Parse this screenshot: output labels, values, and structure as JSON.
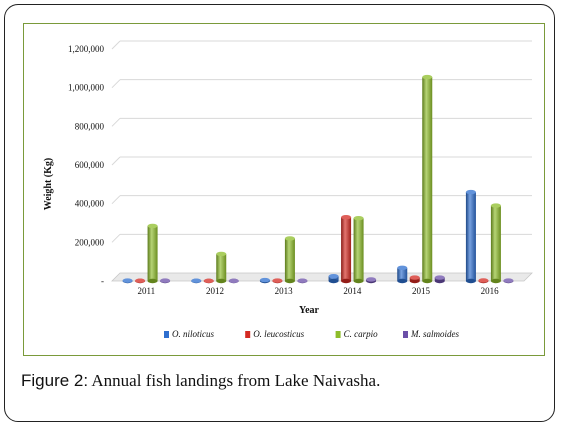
{
  "caption": {
    "label": "Figure 2:",
    "text": "Annual fish landings from Lake Naivasha."
  },
  "chart_data": {
    "type": "bar",
    "style": "3d-cylinder",
    "categories": [
      "2011",
      "2012",
      "2013",
      "2014",
      "2015",
      "2016"
    ],
    "xlabel": "Year",
    "ylabel": "Weight (Kg)",
    "ylim": [
      0,
      1200000
    ],
    "yticks": [
      "-",
      "200,000",
      "400,000",
      "600,000",
      "800,000",
      "1,000,000",
      "1,200,000"
    ],
    "grid": true,
    "legend": "bottom",
    "series": [
      {
        "name": "O. niloticus",
        "color": "#2e6fcf",
        "values": [
          2000,
          1500,
          5000,
          25000,
          68000,
          460000
        ]
      },
      {
        "name": "O. leucosticus",
        "color": "#d42a22",
        "values": [
          1500,
          1000,
          2000,
          330000,
          18000,
          3000
        ]
      },
      {
        "name": "C. carpio",
        "color": "#8ebd2a",
        "values": [
          285000,
          140000,
          220000,
          325000,
          1055000,
          390000
        ]
      },
      {
        "name": "M. salmoides",
        "color": "#6b4fa8",
        "values": [
          2000,
          1000,
          1500,
          8000,
          18000,
          2000
        ]
      }
    ]
  }
}
